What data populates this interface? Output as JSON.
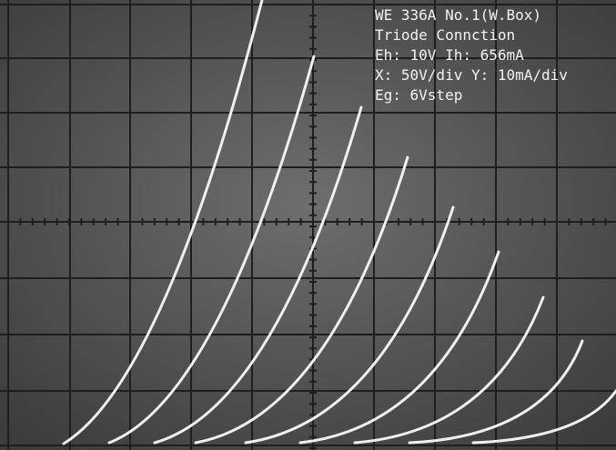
{
  "screen": {
    "lines": [
      "WE 336A No.1(W.Box)",
      "Triode Connction",
      "Eh: 10V Ih: 656mA",
      "X: 50V/div Y: 10mA/div",
      "Eg: 6Vstep"
    ]
  }
}
